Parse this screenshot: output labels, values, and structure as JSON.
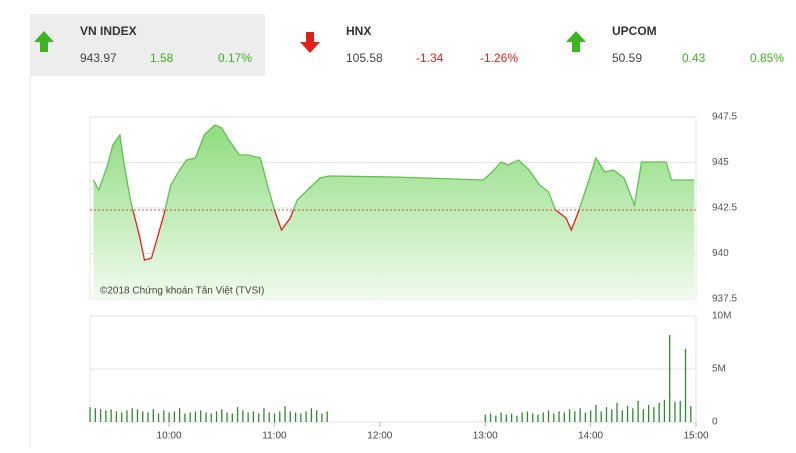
{
  "tickers": [
    {
      "name": "VN INDEX",
      "value": "943.97",
      "change": "1.58",
      "percent": "0.17%",
      "direction": "up",
      "color": "#3cb521"
    },
    {
      "name": "HNX",
      "value": "105.58",
      "change": "-1.34",
      "percent": "-1.26%",
      "direction": "down",
      "color": "#e0201a"
    },
    {
      "name": "UPCOM",
      "value": "50.59",
      "change": "0.43",
      "percent": "0.85%",
      "direction": "up",
      "color": "#3cb521"
    }
  ],
  "chart_data": {
    "type": "area",
    "annotation": "©2018 Chứng khoán Tân Việt (TVSI)",
    "reference": 942.39,
    "x": [
      557,
      560,
      565,
      568,
      572,
      574,
      578,
      583,
      586,
      590,
      593,
      597,
      601,
      606,
      610,
      615,
      620,
      626,
      630,
      634,
      640,
      645,
      652,
      656,
      660,
      664,
      669,
      673,
      680,
      686,
      691,
      731,
      779,
      785,
      789,
      793,
      799,
      805,
      811,
      816,
      820,
      826,
      829,
      833,
      839,
      843,
      848,
      853,
      859,
      865,
      869,
      883,
      886,
      899
    ],
    "values": [
      944.04,
      943.49,
      944.86,
      945.96,
      946.51,
      945.13,
      942.94,
      941.02,
      939.64,
      939.75,
      940.74,
      942.12,
      943.76,
      944.59,
      945.14,
      945.25,
      946.51,
      947.06,
      946.9,
      946.24,
      945.41,
      945.41,
      945.25,
      943.76,
      942.39,
      941.29,
      941.95,
      942.94,
      943.6,
      944.15,
      944.26,
      944.2,
      944.04,
      944.59,
      945.03,
      944.86,
      945.14,
      944.59,
      943.76,
      943.38,
      942.39,
      941.95,
      941.29,
      942.28,
      944.04,
      945.25,
      944.48,
      944.59,
      944.15,
      942.66,
      945.03,
      945.03,
      944.04,
      944.04
    ],
    "color": "#5fc24e",
    "below_color": "#e0201a",
    "xlim": [
      555,
      900
    ],
    "xticks": [
      {
        "value": 600,
        "label": "10:00"
      },
      {
        "value": 660,
        "label": "11:00"
      },
      {
        "value": 720,
        "label": "12:00"
      },
      {
        "value": 780,
        "label": "13:00"
      },
      {
        "value": 840,
        "label": "14:00"
      },
      {
        "value": 900,
        "label": "15:00"
      }
    ],
    "ylim": [
      937.5,
      947.5
    ],
    "yticks": [
      937.5,
      940,
      942.5,
      945,
      947.5
    ],
    "grid": true,
    "volume": {
      "x": [
        555,
        558,
        561,
        564,
        567,
        570,
        573,
        576,
        579,
        582,
        585,
        588,
        591,
        594,
        597,
        600,
        603,
        606,
        609,
        612,
        615,
        618,
        621,
        624,
        627,
        630,
        633,
        636,
        639,
        642,
        645,
        648,
        651,
        654,
        657,
        660,
        663,
        666,
        669,
        672,
        675,
        678,
        681,
        684,
        687,
        690,
        780,
        783,
        786,
        789,
        792,
        795,
        798,
        801,
        804,
        807,
        810,
        813,
        816,
        819,
        822,
        825,
        828,
        831,
        834,
        837,
        840,
        843,
        846,
        849,
        852,
        855,
        858,
        861,
        864,
        867,
        870,
        873,
        876,
        879,
        882,
        885,
        888,
        891,
        894,
        897
      ],
      "values": [
        1.4,
        1.3,
        1.2,
        1.1,
        1.2,
        1.0,
        0.9,
        1.1,
        1.3,
        1.2,
        1.0,
        0.9,
        1.2,
        0.8,
        1.1,
        0.9,
        1.0,
        1.3,
        0.8,
        0.9,
        1.0,
        1.1,
        0.9,
        0.8,
        1.0,
        1.2,
        0.9,
        0.8,
        1.4,
        1.1,
        0.9,
        1.0,
        0.8,
        1.3,
        0.9,
        0.8,
        1.0,
        1.5,
        1.0,
        0.9,
        0.8,
        1.0,
        1.3,
        1.1,
        0.8,
        1.0,
        0.7,
        0.8,
        0.6,
        0.9,
        0.7,
        0.8,
        0.6,
        0.9,
        1.0,
        0.8,
        0.7,
        0.9,
        1.1,
        0.8,
        1.0,
        0.9,
        1.2,
        1.0,
        1.3,
        0.9,
        1.1,
        1.6,
        1.0,
        1.4,
        1.2,
        1.8,
        1.1,
        1.5,
        1.3,
        2.0,
        1.2,
        1.6,
        1.4,
        1.8,
        2.1,
        8.2,
        1.9,
        2.0,
        6.9,
        1.5
      ],
      "color": "#2e8b2e",
      "ylim": [
        0,
        10
      ],
      "yticks": [
        0,
        {
          "value": 5,
          "label": "5M"
        },
        {
          "value": 10,
          "label": "10M"
        }
      ]
    }
  }
}
